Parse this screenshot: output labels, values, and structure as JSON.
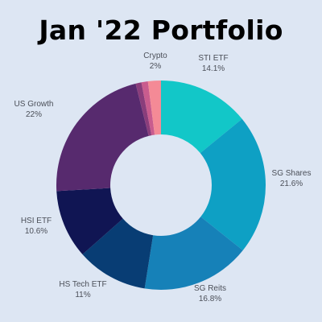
{
  "chart_data": {
    "type": "pie",
    "title": "Jan '22 Portfolio",
    "categories": [
      "STI ETF",
      "SG Shares",
      "SG Reits",
      "HS Tech ETF",
      "HSI ETF",
      "US Growth",
      "",
      "",
      "Crypto"
    ],
    "values": [
      14.1,
      21.6,
      16.8,
      11,
      10.6,
      22,
      0.9,
      1,
      2
    ],
    "value_labels": [
      "14.1%",
      "21.6%",
      "16.8%",
      "11%",
      "10.6%",
      "22%",
      "",
      "",
      "2%"
    ],
    "colors": [
      "#12c7c8",
      "#0ea0c4",
      "#1681b8",
      "#083d74",
      "#101553",
      "#572a6e",
      "#8a3d7b",
      "#c95c8e",
      "#f48a96"
    ],
    "donut": true,
    "start": "top, clockwise",
    "legend": "none"
  }
}
